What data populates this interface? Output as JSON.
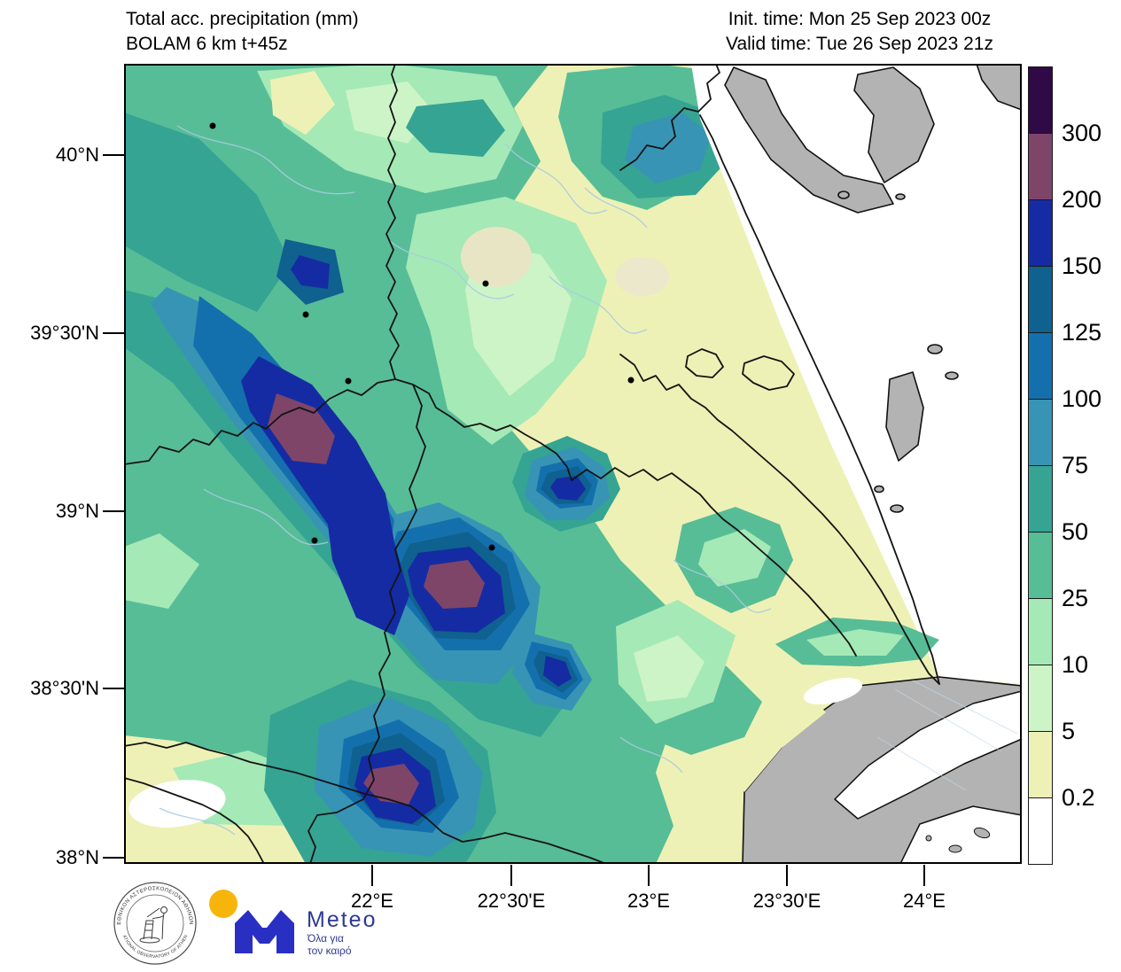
{
  "header": {
    "title_line1": "Total acc. precipitation (mm)",
    "title_line2": "BOLAM 6 km t+45z",
    "init_time": "Init. time: Mon 25 Sep 2023 00z",
    "valid_time": "Valid time: Tue 26 Sep 2023 21z"
  },
  "colorbar": {
    "unit": "mm",
    "cells": [
      {
        "color": "#300a46",
        "label_below": "300"
      },
      {
        "color": "#7e4569",
        "label_below": "200"
      },
      {
        "color": "#152ba3",
        "label_below": "150"
      },
      {
        "color": "#0f618f",
        "label_below": "125"
      },
      {
        "color": "#1470ad",
        "label_below": "100"
      },
      {
        "color": "#3894b4",
        "label_below": "75"
      },
      {
        "color": "#35a493",
        "label_below": "50"
      },
      {
        "color": "#57bd97",
        "label_below": "25"
      },
      {
        "color": "#a5e9b6",
        "label_below": "10"
      },
      {
        "color": "#cdf4c6",
        "label_below": "5"
      },
      {
        "color": "#eef1b5",
        "label_below": "0.2"
      },
      {
        "color": "#ffffff",
        "label_below": null
      }
    ]
  },
  "axes": {
    "lat": [
      "40°N",
      "39°30'N",
      "39°N",
      "38°30'N",
      "38°N"
    ],
    "lon": [
      "22°E",
      "22°30'E",
      "23°E",
      "23°30'E",
      "24°E"
    ]
  },
  "map": {
    "dry_land_color": "#b3b3b3",
    "below_threshold_color": "#ffffff",
    "border_color": "#141414",
    "river_color": "#a9cbe0"
  },
  "footer": {
    "noa_seal": {
      "greek_text": "ΕΘΝΙΚΟΝ ΑΣΤΕΡΟΣΚΟΠΕΙΟΝ ΑΘΗΝΩΝ",
      "english_text": "NATIONAL OBSERVATORY OF ATHENS"
    },
    "meteo_logo": {
      "name": "Meteo",
      "tagline_line1": "Όλα για",
      "tagline_line2": "τον καιρό",
      "blue": "#2a2fc4",
      "text_blue": "#2e3a94",
      "yellow": "#f7b50c"
    }
  }
}
